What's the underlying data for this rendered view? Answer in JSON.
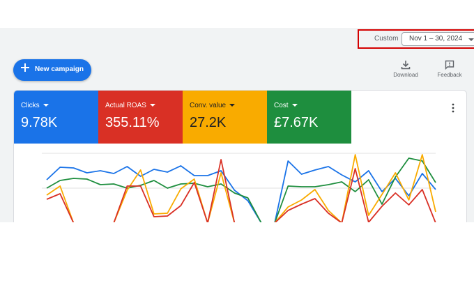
{
  "date_range": {
    "label": "Custom",
    "value": "Nov 1 – 30, 2024"
  },
  "new_campaign": {
    "label": "New campaign",
    "icon": "plus-icon"
  },
  "toolbar": {
    "download_label": "Download",
    "feedback_label": "Feedback"
  },
  "metrics": [
    {
      "label": "Clicks",
      "value": "9.78K",
      "color": "#1a73e8"
    },
    {
      "label": "Actual ROAS",
      "value": "355.11%",
      "color": "#d93025"
    },
    {
      "label": "Conv. value",
      "value": "27.2K",
      "color": "#f9ab00"
    },
    {
      "label": "Cost",
      "value": "£7.67K",
      "color": "#1e8e3e"
    }
  ],
  "chart_data": {
    "type": "line",
    "x": [
      1,
      2,
      3,
      4,
      5,
      6,
      7,
      8,
      9,
      10,
      11,
      12,
      13,
      14,
      15,
      16,
      17,
      18,
      19,
      20,
      21,
      22,
      23,
      24,
      25,
      26,
      27,
      28,
      29,
      30
    ],
    "series": [
      {
        "color": "#1a73e8",
        "values": [
          62,
          80,
          79,
          72,
          75,
          71,
          81,
          67,
          77,
          73,
          82,
          68,
          68,
          75,
          47,
          32,
          0,
          0,
          89,
          70,
          76,
          81,
          69,
          59,
          75,
          45,
          64,
          39,
          71,
          48
        ]
      },
      {
        "color": "#1e8e3e",
        "values": [
          50,
          61,
          64,
          63,
          55,
          56,
          50,
          54,
          61,
          50,
          56,
          57,
          52,
          56,
          43,
          36,
          0,
          0,
          53,
          52,
          52,
          55,
          59,
          45,
          62,
          27,
          66,
          93,
          89,
          58
        ]
      },
      {
        "color": "#f9ab00",
        "values": [
          40,
          53,
          0,
          0,
          0,
          0,
          47,
          76,
          13,
          14,
          49,
          63,
          0,
          72,
          0,
          0,
          0,
          0,
          23,
          33,
          48,
          18,
          0,
          98,
          11,
          41,
          72,
          33,
          98,
          16
        ]
      },
      {
        "color": "#d93025",
        "values": [
          34,
          42,
          0,
          0,
          0,
          0,
          53,
          53,
          9,
          10,
          25,
          58,
          0,
          91,
          0,
          0,
          0,
          0,
          18,
          27,
          35,
          14,
          0,
          78,
          1,
          24,
          43,
          26,
          48,
          0
        ]
      }
    ]
  }
}
